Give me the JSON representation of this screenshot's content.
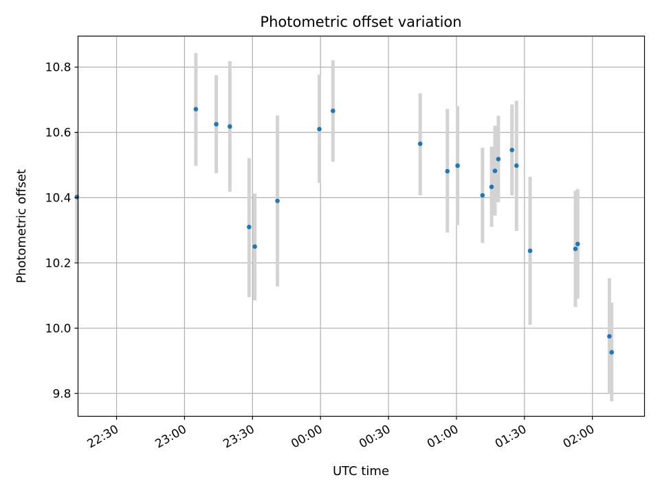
{
  "chart_data": {
    "type": "scatter",
    "title": "Photometric offset variation",
    "xlabel": "UTC time",
    "ylabel": "Photometric offset",
    "xlim": [
      "22:13",
      "02:23"
    ],
    "ylim": [
      9.73,
      10.895
    ],
    "grid": true,
    "x_tick_labels": [
      "22:30",
      "23:00",
      "23:30",
      "00:00",
      "00:30",
      "01:00",
      "01:30",
      "02:00"
    ],
    "y_tick_labels": [
      "9.8",
      "10.0",
      "10.2",
      "10.4",
      "10.6",
      "10.8"
    ],
    "colors": {
      "point": "#1f77b4",
      "errorbar": "#d3d3d3",
      "grid": "#b0b0b0"
    },
    "series": [
      {
        "points": [
          {
            "x": "22:12:30",
            "y": 10.402,
            "ylo": 10.203,
            "yhi": 10.603
          },
          {
            "x": "23:05:00",
            "y": 10.671,
            "ylo": 10.497,
            "yhi": 10.843
          },
          {
            "x": "23:14:00",
            "y": 10.625,
            "ylo": 10.475,
            "yhi": 10.775
          },
          {
            "x": "23:20:00",
            "y": 10.618,
            "ylo": 10.418,
            "yhi": 10.818
          },
          {
            "x": "23:28:30",
            "y": 10.31,
            "ylo": 10.095,
            "yhi": 10.521
          },
          {
            "x": "23:31:00",
            "y": 10.25,
            "ylo": 10.085,
            "yhi": 10.412
          },
          {
            "x": "23:41:00",
            "y": 10.39,
            "ylo": 10.128,
            "yhi": 10.652
          },
          {
            "x": "23:59:30",
            "y": 10.61,
            "ylo": 10.445,
            "yhi": 10.777
          },
          {
            "x": "00:05:30",
            "y": 10.666,
            "ylo": 10.51,
            "yhi": 10.821
          },
          {
            "x": "00:44:00",
            "y": 10.565,
            "ylo": 10.407,
            "yhi": 10.72
          },
          {
            "x": "00:56:00",
            "y": 10.481,
            "ylo": 10.293,
            "yhi": 10.672
          },
          {
            "x": "01:00:30",
            "y": 10.498,
            "ylo": 10.316,
            "yhi": 10.681
          },
          {
            "x": "01:11:30",
            "y": 10.407,
            "ylo": 10.261,
            "yhi": 10.553
          },
          {
            "x": "01:15:30",
            "y": 10.433,
            "ylo": 10.31,
            "yhi": 10.556
          },
          {
            "x": "01:17:00",
            "y": 10.482,
            "ylo": 10.345,
            "yhi": 10.62
          },
          {
            "x": "01:18:30",
            "y": 10.518,
            "ylo": 10.386,
            "yhi": 10.651
          },
          {
            "x": "01:24:30",
            "y": 10.546,
            "ylo": 10.407,
            "yhi": 10.685
          },
          {
            "x": "01:26:30",
            "y": 10.498,
            "ylo": 10.298,
            "yhi": 10.697
          },
          {
            "x": "01:32:30",
            "y": 10.237,
            "ylo": 10.01,
            "yhi": 10.464
          },
          {
            "x": "01:52:30",
            "y": 10.243,
            "ylo": 10.065,
            "yhi": 10.421
          },
          {
            "x": "01:53:30",
            "y": 10.258,
            "ylo": 10.09,
            "yhi": 10.426
          },
          {
            "x": "02:07:30",
            "y": 9.975,
            "ylo": 9.798,
            "yhi": 10.153
          },
          {
            "x": "02:08:30",
            "y": 9.926,
            "ylo": 9.776,
            "yhi": 10.078
          }
        ]
      }
    ]
  }
}
